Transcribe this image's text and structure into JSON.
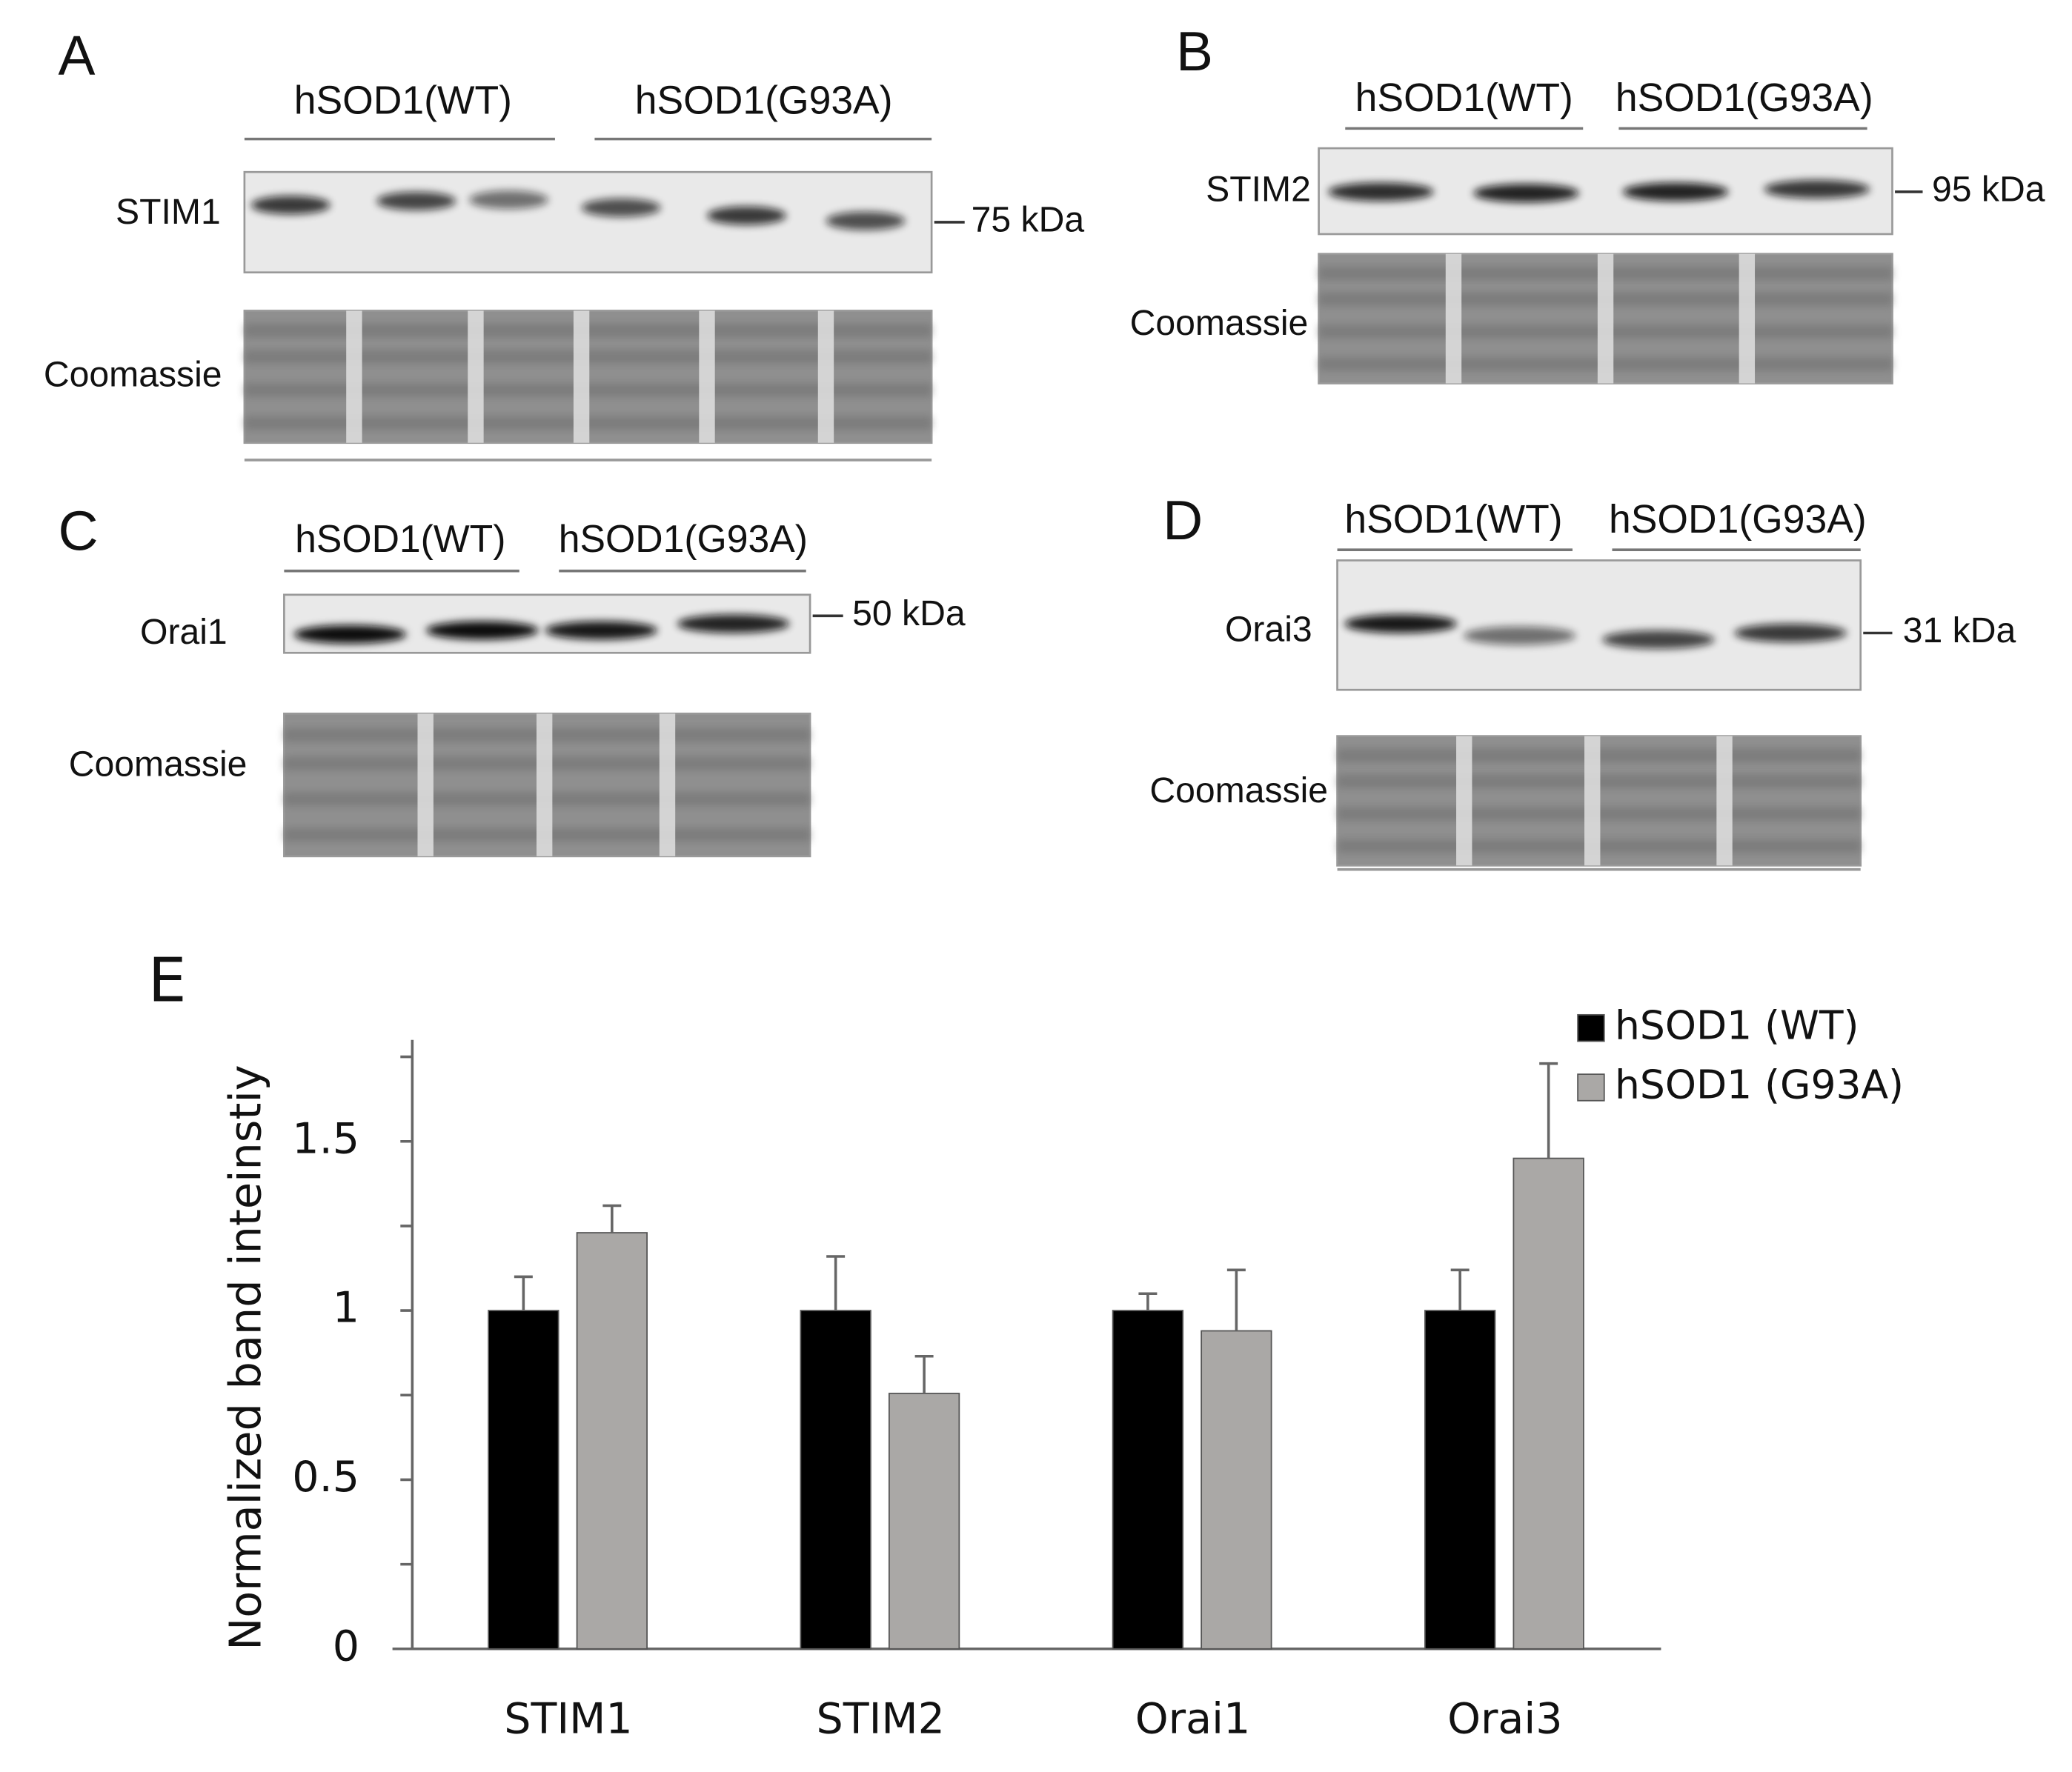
{
  "panels": [
    {
      "letter": "A",
      "groups": [
        "hSOD1(WT)",
        "hSOD1(G93A)"
      ],
      "rows": [
        "STIM1",
        "Coomassie"
      ],
      "marker": "75 kDa"
    },
    {
      "letter": "B",
      "groups": [
        "hSOD1(WT)",
        "hSOD1(G93A)"
      ],
      "rows": [
        "STIM2",
        "Coomassie"
      ],
      "marker": "95 kDa"
    },
    {
      "letter": "C",
      "groups": [
        "hSOD1(WT)",
        "hSOD1(G93A)"
      ],
      "rows": [
        "Orai1",
        "Coomassie"
      ],
      "marker": "50 kDa"
    },
    {
      "letter": "D",
      "groups": [
        "hSOD1(WT)",
        "hSOD1(G93A)"
      ],
      "rows": [
        "Orai3",
        "Coomassie"
      ],
      "marker": "31 kDa"
    }
  ],
  "chart_data": {
    "type": "bar",
    "label": "E",
    "y_label": "Normalized band inteinstiy",
    "categories": [
      "STIM1",
      "STIM2",
      "Orai1",
      "Orai3"
    ],
    "series": [
      {
        "name": "hSOD1 (WT)",
        "color": "#000000",
        "values": [
          1,
          1,
          1,
          1
        ],
        "errors": [
          0.1,
          0.16,
          0.05,
          0.12
        ]
      },
      {
        "name": "hSOD1 (G93A)",
        "color": "#aaa8a6",
        "values": [
          1.23,
          0.755,
          0.94,
          1.45
        ],
        "errors": [
          0.08,
          0.11,
          0.18,
          0.28
        ]
      }
    ],
    "ylim": [
      0,
      1.8
    ],
    "yticks": [
      0,
      0.5,
      1,
      1.5
    ],
    "minor_yticks": [
      0.25,
      0.75,
      1.25,
      1.75
    ]
  }
}
